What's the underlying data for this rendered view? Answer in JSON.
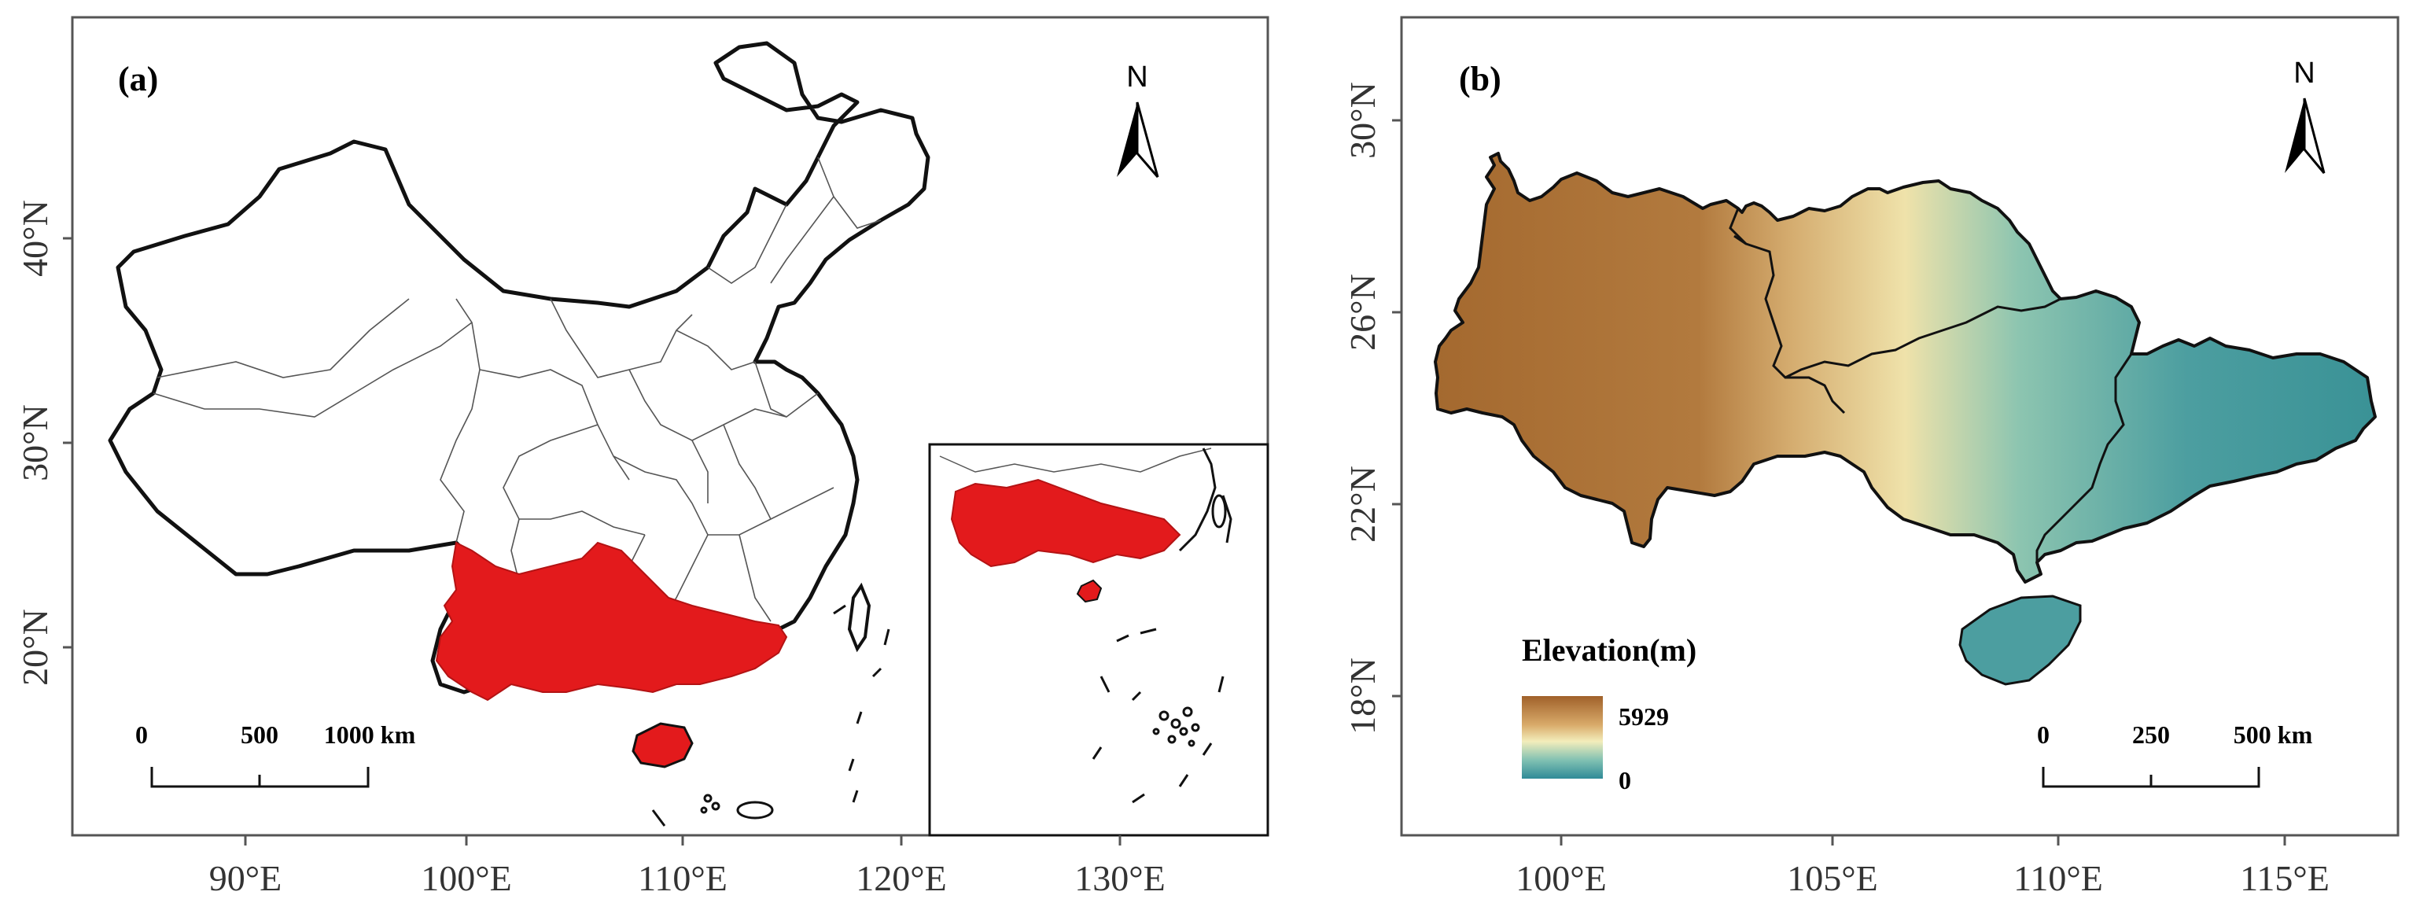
{
  "panel_a": {
    "label": "(a)",
    "north": "N",
    "x_ticks": [
      "90°E",
      "100°E",
      "110°E",
      "120°E",
      "130°E"
    ],
    "y_ticks": [
      "40°N",
      "30°N",
      "20°N"
    ],
    "scale": {
      "v0": "0",
      "v1": "500",
      "v2": "1000 km"
    },
    "highlight_color": "#e31a1c"
  },
  "panel_b": {
    "label": "(b)",
    "north": "N",
    "x_ticks": [
      "100°E",
      "105°E",
      "110°E",
      "115°E"
    ],
    "y_ticks": [
      "30°N",
      "26°N",
      "22°N",
      "18°N"
    ],
    "scale": {
      "v0": "0",
      "v1": "250",
      "v2": "500 km"
    },
    "legend": {
      "title": "Elevation(m)",
      "max": "5929",
      "min": "0",
      "high_color": "#a0612a",
      "mid_color": "#f3edbb",
      "low_color": "#2f8a97"
    }
  }
}
